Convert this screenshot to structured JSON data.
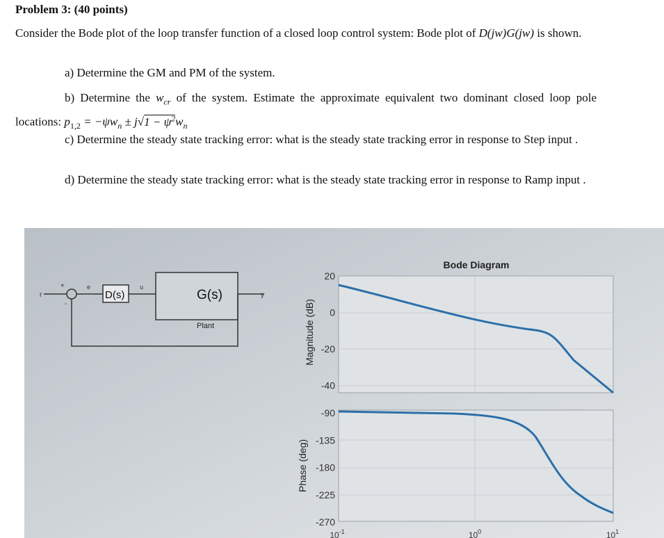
{
  "header": {
    "title": "Problem 3: (40 points)"
  },
  "intro": {
    "text1": "Consider the Bode plot of the loop transfer function of a closed loop control system: Bode plot of",
    "math": "D(jw)G(jw)",
    "text2": "is shown."
  },
  "items": [
    {
      "text": "a) Determine the GM and PM of the system."
    },
    {
      "text1": "b) Determine the",
      "w": "w",
      "w_sub": "cr",
      "text2": "of the system. Estimate the approximate equivalent two dominant closed loop pole locations:",
      "p": "p",
      "p_sub": "1,2",
      "eq": "= −ψw",
      "n1": "n",
      "pm": "± j",
      "root": "1 − ψ",
      "sq": "2",
      "w2": "w",
      "n2": "n"
    },
    {
      "text": "c) Determine the steady state tracking error: what is the steady state tracking error in response to Step input ."
    },
    {
      "text": "d) Determine the steady state tracking error: what is the steady state tracking error in response to Ramp input ."
    }
  ],
  "figure": {
    "block": {
      "r": "r",
      "plus": "+",
      "minus": "-",
      "e": "e",
      "controller": "D(s)",
      "u": "u",
      "plant_box": "G(s)",
      "plant_label": "Plant",
      "y": "y"
    },
    "bode": {
      "title": "Bode Diagram",
      "mag_label": "Magnitude (dB)",
      "phase_label": "Phase (deg)",
      "mag_ticks": [
        "20",
        "0",
        "-20",
        "-40"
      ],
      "phase_ticks": [
        "-90",
        "-135",
        "-180",
        "-225",
        "-270"
      ],
      "x_ticks": [
        {
          "base": "10",
          "exp": "-1"
        },
        {
          "base": "10",
          "exp": "0"
        },
        {
          "base": "10",
          "exp": "1"
        }
      ]
    }
  }
}
